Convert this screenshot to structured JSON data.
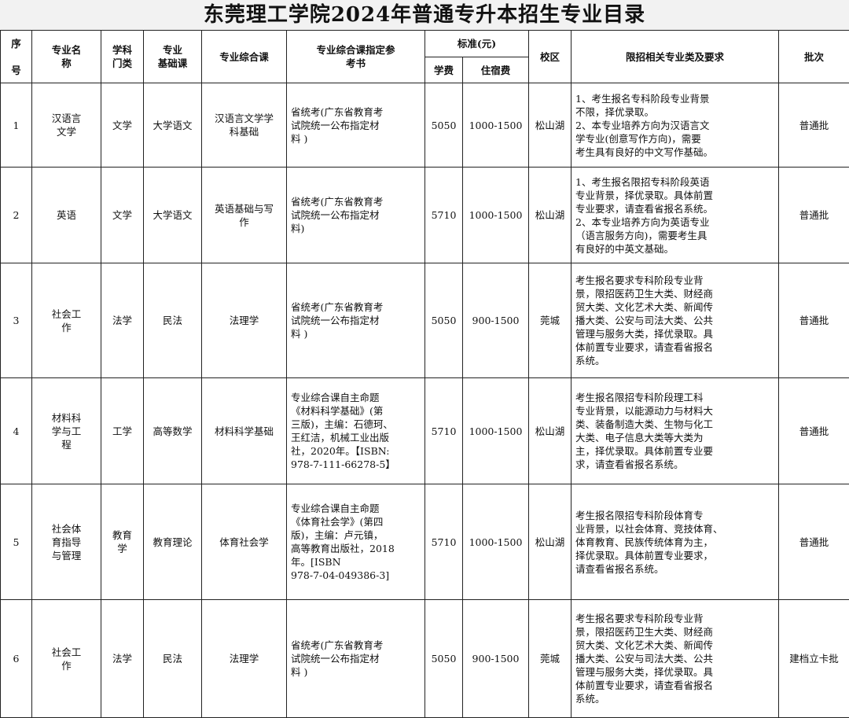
{
  "title": "东莞理工学院2024年普通专升本招生专业目录",
  "headers": {
    "no": "序\n\n号",
    "major": "专业名\n称",
    "category": "学科\n门类",
    "basic": "专业\n基础课",
    "comprehensive": "专业综合课",
    "reference": "专业综合课指定参\n考书",
    "standard": "标准(元)",
    "tuition": "学费",
    "lodging": "住宿费",
    "campus": "校区",
    "requirements": "限招相关专业类及要求",
    "batch": "批次"
  },
  "rows": [
    {
      "no": "1",
      "major": "汉语言\n文学",
      "category": "文学",
      "basic": "大学语文",
      "comprehensive": "汉语言文学学\n科基础",
      "reference": "省统考(广东省教育考\n试院统一公布指定材\n料 )",
      "tuition": "5050",
      "lodging": "1000-1500",
      "campus": "松山湖",
      "requirements": "1、考生报名专科阶段专业背景\n不限，择优录取。\n2、本专业培养方向为汉语言文\n学专业(创意写作方向)，需要\n考生具有良好的中文写作基础。",
      "batch": "普通批"
    },
    {
      "no": "2",
      "major": "英语",
      "category": "文学",
      "basic": "大学语文",
      "comprehensive": "英语基础与写\n作",
      "reference": "省统考(广东省教育考\n试院统一公布指定材\n料)",
      "tuition": "5710",
      "lodging": "1000-1500",
      "campus": "松山湖",
      "requirements": "1、考生报名限招专科阶段英语\n专业背景，择优录取。具体前置\n专业要求，请查看省报名系统。\n2、本专业培养方向为英语专业\n（语言服务方向)，需要考生具\n有良好的中英文基础。",
      "batch": "普通批"
    },
    {
      "no": "3",
      "major": "社会工\n作",
      "category": "法学",
      "basic": "民法",
      "comprehensive": "法理学",
      "reference": "省统考(广东省教育考\n试院统一公布指定材\n料 )",
      "tuition": "5050",
      "lodging": "900-1500",
      "campus": "莞城",
      "requirements": "考生报名要求专科阶段专业背\n景，限招医药卫生大类、财经商\n贸大类、文化艺术大类、新闻传\n播大类、公安与司法大类、公共\n管理与服务大类，择优录取。具\n体前置专业要求，请查看省报名\n系统。",
      "batch": "普通批"
    },
    {
      "no": "4",
      "major": "材料科\n学与工\n程",
      "category": "工学",
      "basic": "高等数学",
      "comprehensive": "材料科学基础",
      "reference": "专业综合课自主命题\n《材料科学基础》(第\n三版)，主编：石德珂、\n王红洁，机械工业出版\n社，2020年。【ISBN:\n978-7-111-66278-5】",
      "tuition": "5710",
      "lodging": "1000-1500",
      "campus": "松山湖",
      "requirements": "考生报名限招专科阶段理工科\n专业背景，以能源动力与材料大\n类、装备制造大类、生物与化工\n大类、电子信息大类等大类为\n主，择优录取。具体前置专业要\n求，请查看省报名系统。",
      "batch": "普通批"
    },
    {
      "no": "5",
      "major": "社会体\n育指导\n与管理",
      "category": "教育\n学",
      "basic": "教育理论",
      "comprehensive": "体育社会学",
      "reference": "专业综合课自主命题\n《体育社会学》(第四\n版)，主编：卢元镇，\n高等教育出版社，2018\n年。[ISBN\n978-7-04-049386-3]",
      "tuition": "5710",
      "lodging": "1000-1500",
      "campus": "松山湖",
      "requirements": "考生报名限招专科阶段体育专\n业背景，以社会体育、竞技体育、\n体育教育、民族传统体育为主，\n择优录取。具体前置专业要求，\n请查看省报名系统。",
      "batch": "普通批"
    },
    {
      "no": "6",
      "major": "社会工\n作",
      "category": "法学",
      "basic": "民法",
      "comprehensive": "法理学",
      "reference": "省统考(广东省教育考\n试院统一公布指定材\n料 )",
      "tuition": "5050",
      "lodging": "900-1500",
      "campus": "莞城",
      "requirements": "考生报名要求专科阶段专业背\n景，限招医药卫生大类、财经商\n贸大类、文化艺术大类、新闻传\n播大类、公安与司法大类、公共\n管理与服务大类，择优录取。具\n体前置专业要求，请查看省报名\n系统。",
      "batch": "建档立卡批"
    }
  ]
}
